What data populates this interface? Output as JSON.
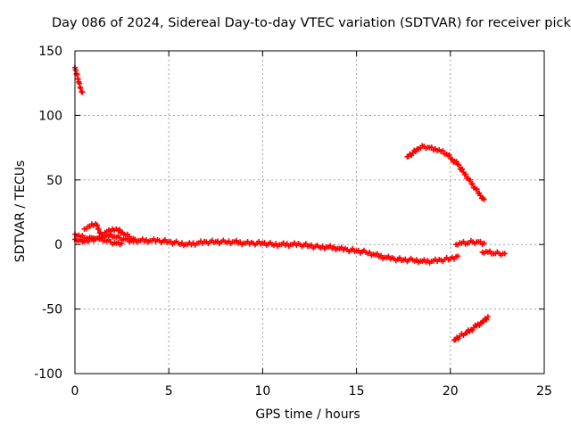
{
  "chart_data": {
    "type": "scatter",
    "title": "Day 086 of 2024, Sidereal Day-to-day VTEC variation (SDTVAR) for receiver pick",
    "xlabel": "GPS time / hours",
    "ylabel": "SDTVAR / TECUs",
    "xlim": [
      0,
      25
    ],
    "ylim": [
      -100,
      150
    ],
    "xticks": [
      0,
      5,
      10,
      15,
      20,
      25
    ],
    "yticks": [
      150,
      100,
      50,
      0,
      -50,
      -100
    ],
    "grid": true,
    "series_color": "#ff0000",
    "series": [
      {
        "segments": [
          {
            "x": [
              0.0,
              0.1,
              0.2,
              0.3,
              0.4
            ],
            "y": [
              137,
              132,
              126,
              121,
              118
            ]
          },
          {
            "x": [
              17.7,
              18.0,
              18.3,
              18.6,
              18.9,
              19.2,
              19.5,
              19.8,
              20.1,
              20.4,
              20.7,
              21.0,
              21.3,
              21.6,
              21.8
            ],
            "y": [
              68,
              71,
              74,
              76,
              75,
              74,
              72,
              70,
              66,
              62,
              56,
              50,
              44,
              38,
              35
            ]
          },
          {
            "x": [
              0.0,
              0.3,
              0.6,
              0.9,
              1.2,
              1.5,
              1.8,
              2.1,
              2.4,
              2.7,
              3.0,
              3.5,
              4.0,
              4.5,
              5.0,
              5.5,
              6.0,
              6.5,
              7.0,
              7.5,
              8.0,
              8.5,
              9.0,
              9.5,
              10.0,
              10.5,
              11.0,
              11.5,
              12.0,
              12.5,
              13.0,
              13.5,
              14.0,
              14.5,
              15.0,
              15.5,
              16.0,
              16.5,
              17.0,
              17.5,
              18.0,
              18.5,
              19.0,
              19.5,
              20.0,
              20.4
            ],
            "y": [
              8,
              6,
              5,
              4,
              5,
              6,
              7,
              6,
              5,
              4,
              3,
              3,
              3,
              3,
              2,
              1,
              0,
              1,
              2,
              2,
              2,
              2,
              1,
              1,
              1,
              0,
              0,
              0,
              0,
              -1,
              -2,
              -2,
              -3,
              -4,
              -5,
              -6,
              -8,
              -10,
              -11,
              -12,
              -12,
              -13,
              -13,
              -12,
              -11,
              -9
            ]
          },
          {
            "x": [
              0.5,
              0.8,
              1.1,
              1.4,
              1.7,
              2.0,
              2.3,
              2.6,
              2.9,
              3.2
            ],
            "y": [
              12,
              14,
              16,
              8,
              10,
              12,
              11,
              8,
              6,
              4
            ]
          },
          {
            "x": [
              0.0,
              0.2,
              0.4,
              0.6,
              0.8,
              1.0,
              1.3,
              1.6,
              1.9,
              2.2,
              2.5
            ],
            "y": [
              4,
              3,
              2,
              3,
              4,
              5,
              4,
              3,
              2,
              1,
              1
            ]
          },
          {
            "x": [
              20.3,
              20.6,
              20.9,
              21.2,
              21.5,
              21.8
            ],
            "y": [
              0,
              1,
              1,
              2,
              2,
              1
            ]
          },
          {
            "x": [
              21.7,
              22.0,
              22.3,
              22.6,
              22.9
            ],
            "y": [
              -6,
              -6,
              -7,
              -7,
              -7
            ]
          },
          {
            "x": [
              20.2,
              20.5,
              20.8,
              21.1,
              21.4,
              21.7,
              22.0
            ],
            "y": [
              -74,
              -71,
              -69,
              -66,
              -63,
              -60,
              -56
            ]
          }
        ]
      }
    ]
  }
}
